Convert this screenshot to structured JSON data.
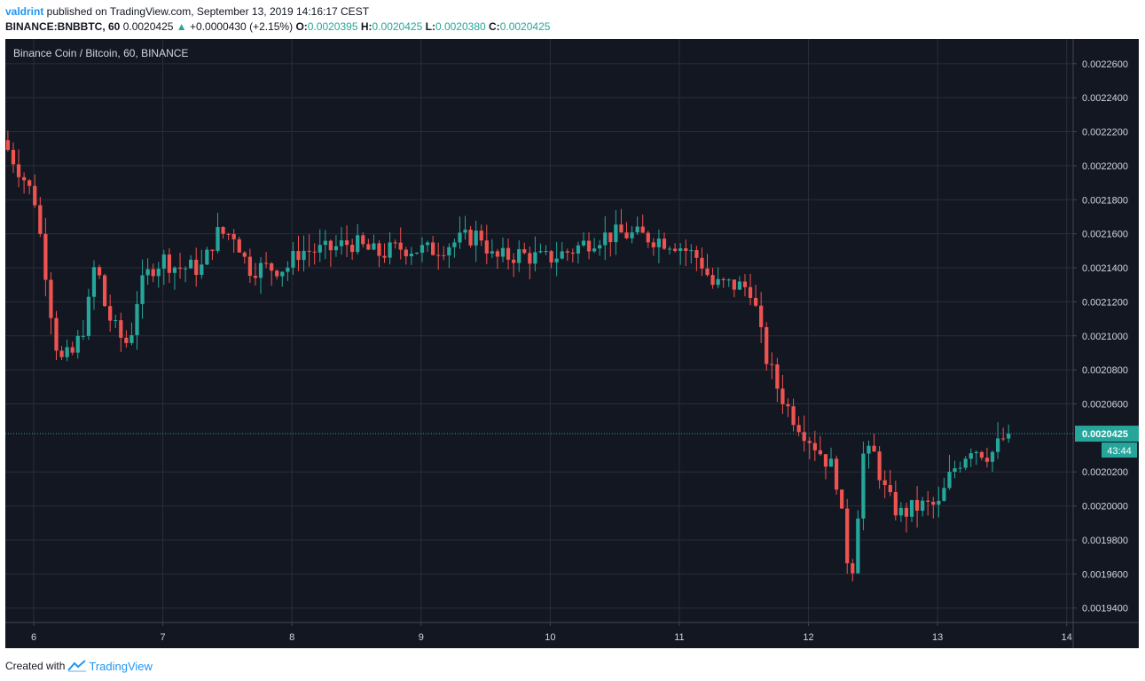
{
  "header": {
    "author": "valdrint",
    "published_text": " published on TradingView.com, September 13, 2019 14:16:17 CEST",
    "symbol": "BINANCE:BNBBTC, 60",
    "last_price": "0.0020425",
    "change": "+0.0000430 (+2.15%)",
    "o_label": "O:",
    "o_value": "0.0020395",
    "h_label": "H:",
    "h_value": "0.0020425",
    "l_label": "L:",
    "l_value": "0.0020380",
    "c_label": "C:",
    "c_value": "0.0020425"
  },
  "footer": {
    "created_with": "Created with",
    "brand": "TradingView"
  },
  "colors": {
    "background": "#131722",
    "grid": "#2a2e39",
    "up": "#26a69a",
    "down": "#ef5350",
    "text": "#d1d4dc",
    "border": "#434651"
  },
  "chart_data": {
    "type": "candlestick",
    "title": "Binance Coin / Bitcoin, 60, BINANCE",
    "xlabel": "",
    "ylabel": "",
    "x_tick_labels": [
      "6",
      "7",
      "8",
      "9",
      "10",
      "11",
      "12",
      "13",
      "14"
    ],
    "x_range": [
      5.78,
      14.05
    ],
    "y_tick_labels": [
      "0.0022600",
      "0.0022400",
      "0.0022200",
      "0.0022000",
      "0.0021800",
      "0.0021600",
      "0.0021400",
      "0.0021200",
      "0.0021000",
      "0.0020800",
      "0.0020600",
      "0.0020200",
      "0.0020000",
      "0.0019800",
      "0.0019600",
      "0.0019400"
    ],
    "y_ticks": [
      0.00226,
      0.00224,
      0.00222,
      0.0022,
      0.00218,
      0.00216,
      0.00214,
      0.00212,
      0.0021,
      0.00208,
      0.00206,
      0.00202,
      0.002,
      0.00198,
      0.00196,
      0.00194
    ],
    "ylim": [
      0.0019315,
      0.0022745
    ],
    "grid": true,
    "last_price": 0.0020425,
    "last_price_label": "0.0020425",
    "countdown": "43:44",
    "candles_start_day": 5.8,
    "candle_interval_hours": 1,
    "anchors": [
      [
        5.8,
        0.002215
      ],
      [
        5.95,
        0.002195
      ],
      [
        6.05,
        0.00218
      ],
      [
        6.15,
        0.00213
      ],
      [
        6.2,
        0.0021
      ],
      [
        6.25,
        0.002085
      ],
      [
        6.35,
        0.00209
      ],
      [
        6.45,
        0.00211
      ],
      [
        6.52,
        0.002145
      ],
      [
        6.6,
        0.002115
      ],
      [
        6.7,
        0.0021
      ],
      [
        6.78,
        0.002095
      ],
      [
        6.85,
        0.002125
      ],
      [
        6.95,
        0.00214
      ],
      [
        7.05,
        0.002145
      ],
      [
        7.15,
        0.00214
      ],
      [
        7.35,
        0.00214
      ],
      [
        7.45,
        0.00216
      ],
      [
        7.6,
        0.00216
      ],
      [
        7.7,
        0.00214
      ],
      [
        7.85,
        0.00214
      ],
      [
        8.0,
        0.00214
      ],
      [
        8.1,
        0.00215
      ],
      [
        8.3,
        0.00215
      ],
      [
        8.5,
        0.002155
      ],
      [
        8.7,
        0.002148
      ],
      [
        8.9,
        0.002152
      ],
      [
        9.1,
        0.00215
      ],
      [
        9.3,
        0.002155
      ],
      [
        9.5,
        0.00216
      ],
      [
        9.6,
        0.002145
      ],
      [
        9.8,
        0.002148
      ],
      [
        10.0,
        0.002145
      ],
      [
        10.2,
        0.00215
      ],
      [
        10.4,
        0.002158
      ],
      [
        10.6,
        0.00216
      ],
      [
        10.8,
        0.002158
      ],
      [
        11.0,
        0.002155
      ],
      [
        11.2,
        0.002145
      ],
      [
        11.3,
        0.00213
      ],
      [
        11.45,
        0.00213
      ],
      [
        11.6,
        0.002128
      ],
      [
        11.7,
        0.00209
      ],
      [
        11.8,
        0.00207
      ],
      [
        11.9,
        0.002055
      ],
      [
        12.0,
        0.002045
      ],
      [
        12.15,
        0.00203
      ],
      [
        12.25,
        0.00202
      ],
      [
        12.35,
        0.001965
      ],
      [
        12.4,
        0.001965
      ],
      [
        12.45,
        0.00203
      ],
      [
        12.55,
        0.00203
      ],
      [
        12.65,
        0.002005
      ],
      [
        12.75,
        0.001995
      ],
      [
        12.9,
        0.002
      ],
      [
        13.05,
        0.002
      ],
      [
        13.15,
        0.00202
      ],
      [
        13.3,
        0.002035
      ],
      [
        13.45,
        0.00203
      ],
      [
        13.58,
        0.0020425
      ]
    ]
  }
}
